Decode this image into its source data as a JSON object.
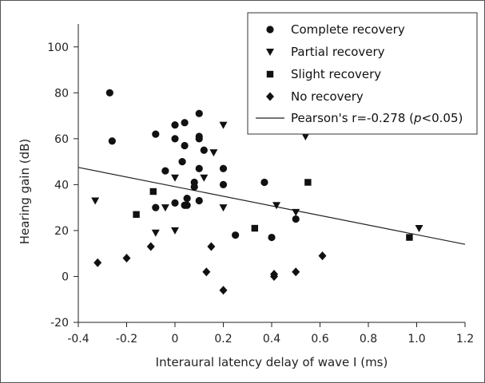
{
  "chart_data": {
    "type": "scatter",
    "title": "",
    "xlabel": "Interaural latency delay of wave I (ms)",
    "ylabel": "Hearing gain (dB)",
    "xlim": [
      -0.4,
      1.2
    ],
    "ylim": [
      -20,
      110
    ],
    "xticks": [
      "-0.4",
      "-0.2",
      "0",
      "0.2",
      "0.4",
      "0.6",
      "0.8",
      "1.0",
      "1.2"
    ],
    "yticks": [
      "-20",
      "0",
      "20",
      "40",
      "60",
      "80",
      "100"
    ],
    "legend_position": "top-right",
    "series": [
      {
        "name": "Complete recovery",
        "marker": "circle",
        "points": [
          [
            -0.27,
            80
          ],
          [
            -0.26,
            59
          ],
          [
            -0.08,
            62
          ],
          [
            -0.04,
            46
          ],
          [
            0.0,
            66
          ],
          [
            0.0,
            60
          ],
          [
            -0.08,
            30
          ],
          [
            0.0,
            32
          ],
          [
            0.04,
            67
          ],
          [
            0.04,
            57
          ],
          [
            0.03,
            50
          ],
          [
            0.04,
            31
          ],
          [
            0.05,
            31
          ],
          [
            0.1,
            71
          ],
          [
            0.1,
            61
          ],
          [
            0.1,
            60
          ],
          [
            0.08,
            41
          ],
          [
            0.08,
            39
          ],
          [
            0.1,
            47
          ],
          [
            0.12,
            55
          ],
          [
            0.05,
            34
          ],
          [
            0.1,
            33
          ],
          [
            0.2,
            47
          ],
          [
            0.2,
            40
          ],
          [
            0.25,
            18
          ],
          [
            0.37,
            41
          ],
          [
            0.4,
            17
          ],
          [
            0.5,
            25
          ]
        ]
      },
      {
        "name": "Partial recovery",
        "marker": "triangle-down",
        "points": [
          [
            -0.33,
            33
          ],
          [
            -0.08,
            19
          ],
          [
            -0.04,
            30
          ],
          [
            0.0,
            43
          ],
          [
            0.0,
            20
          ],
          [
            0.12,
            43
          ],
          [
            0.16,
            54
          ],
          [
            0.2,
            66
          ],
          [
            0.2,
            30
          ],
          [
            0.42,
            31
          ],
          [
            0.5,
            28
          ],
          [
            0.54,
            61
          ],
          [
            1.01,
            21
          ]
        ]
      },
      {
        "name": "Slight recovery",
        "marker": "square",
        "points": [
          [
            -0.16,
            27
          ],
          [
            -0.09,
            37
          ],
          [
            0.33,
            21
          ],
          [
            0.55,
            41
          ],
          [
            0.97,
            17
          ]
        ]
      },
      {
        "name": "No recovery",
        "marker": "diamond",
        "points": [
          [
            -0.32,
            6
          ],
          [
            -0.2,
            8
          ],
          [
            -0.1,
            13
          ],
          [
            0.13,
            2
          ],
          [
            0.15,
            13
          ],
          [
            0.2,
            -6
          ],
          [
            0.41,
            1
          ],
          [
            0.41,
            0
          ],
          [
            0.5,
            2
          ],
          [
            0.61,
            9
          ]
        ]
      }
    ],
    "fit_line": {
      "label": "Pearson's r=-0.278 (p<0.05)",
      "label_prefix": "Pearson's r=-0.278 (",
      "label_italic": "p",
      "label_suffix": "<0.05)",
      "start": [
        -0.4,
        47.5
      ],
      "end": [
        1.2,
        14
      ]
    }
  }
}
